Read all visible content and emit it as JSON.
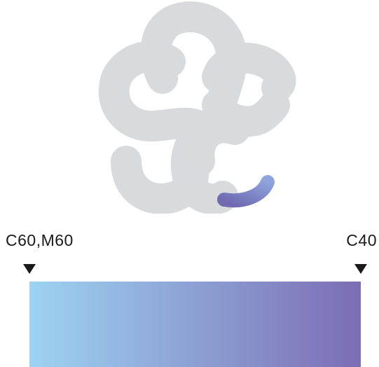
{
  "colors": {
    "logo_gray": "#d9dadb",
    "gradient_start": "#9dd3f2",
    "gradient_end": "#7c6db4",
    "accent_arc_start": "#6f6ab2",
    "accent_arc_end": "#8fa4dc"
  },
  "gradient": {
    "left_stop_label": "C60,M60",
    "right_stop_label": "C40"
  },
  "icons": {
    "logo": "tangled-cloud-logo-icon",
    "stop_marker": "triangle-down-icon"
  }
}
